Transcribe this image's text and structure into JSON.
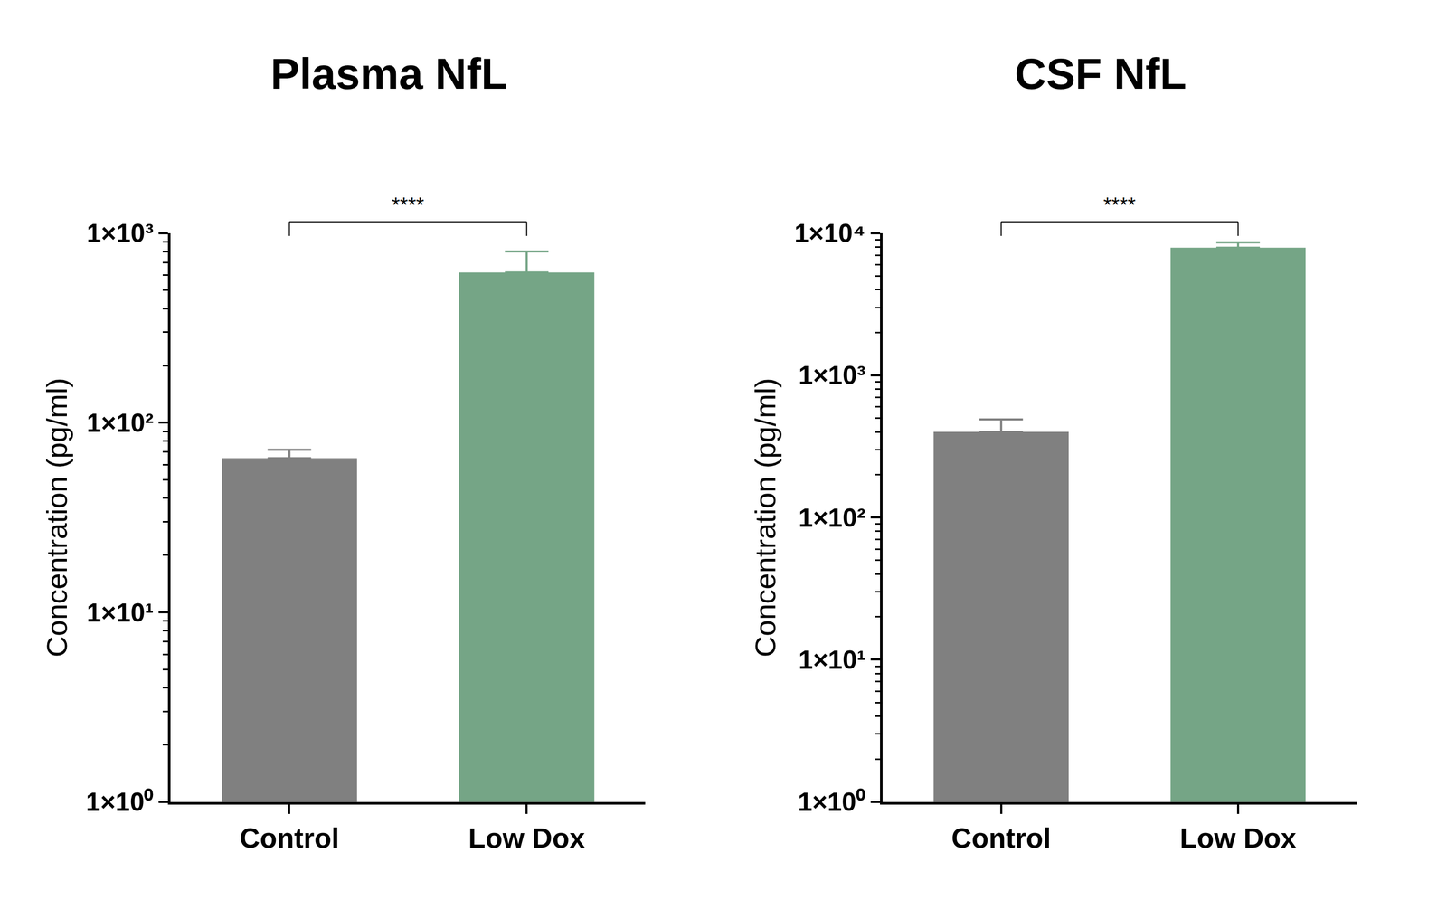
{
  "chart_data": [
    {
      "type": "bar",
      "title": "Plasma NfL",
      "y_label": "Concentration (pg/ml)",
      "categories": [
        "Control",
        "Low Dox"
      ],
      "values": [
        65,
        620
      ],
      "error": [
        7,
        180
      ],
      "colors": [
        "#808080",
        "#75a586"
      ],
      "log": "y",
      "ylim": [
        1,
        1000
      ],
      "yticks": [
        {
          "value": 1,
          "label": "1×10⁰"
        },
        {
          "value": 10,
          "label": "1×10¹"
        },
        {
          "value": 100,
          "label": "1×10²"
        },
        {
          "value": 1000,
          "label": "1×10³"
        }
      ],
      "annotations": [
        {
          "text": "****",
          "between": [
            "Control",
            "Low Dox"
          ]
        }
      ]
    },
    {
      "type": "bar",
      "title": "CSF NfL",
      "y_label": "Concentration (pg/ml)",
      "categories": [
        "Control",
        "Low Dox"
      ],
      "values": [
        400,
        7900
      ],
      "error": [
        90,
        700
      ],
      "colors": [
        "#808080",
        "#75a586"
      ],
      "log": "y",
      "ylim": [
        1,
        10000
      ],
      "yticks": [
        {
          "value": 1,
          "label": "1×10⁰"
        },
        {
          "value": 10,
          "label": "1×10¹"
        },
        {
          "value": 100,
          "label": "1×10²"
        },
        {
          "value": 1000,
          "label": "1×10³"
        },
        {
          "value": 10000,
          "label": "1×10⁴"
        }
      ],
      "annotations": [
        {
          "text": "****",
          "between": [
            "Control",
            "Low Dox"
          ]
        }
      ]
    }
  ]
}
